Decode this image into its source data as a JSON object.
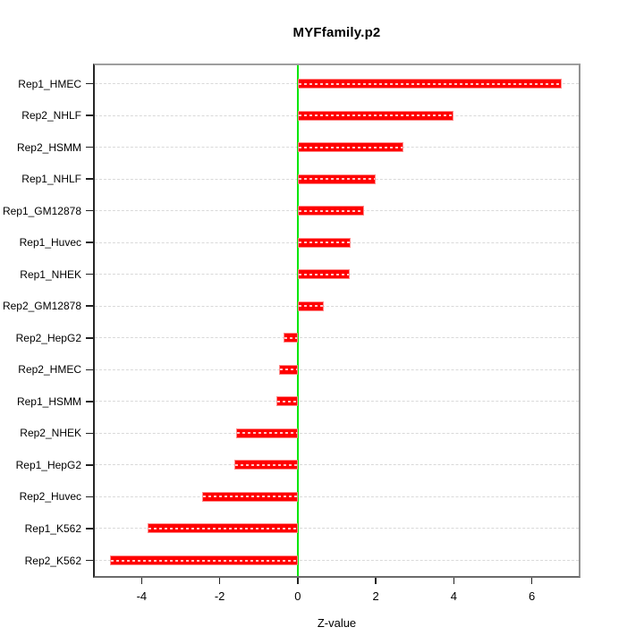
{
  "chart_data": {
    "type": "bar",
    "orientation": "horizontal",
    "title": "MYFfamily.p2",
    "xlabel": "Z-value",
    "ylabel": "",
    "categories": [
      "Rep1_HMEC",
      "Rep2_NHLF",
      "Rep2_HSMM",
      "Rep1_NHLF",
      "Rep1_GM12878",
      "Rep1_Huvec",
      "Rep1_NHEK",
      "Rep2_GM12878",
      "Rep2_HepG2",
      "Rep2_HMEC",
      "Rep1_HSMM",
      "Rep2_NHEK",
      "Rep1_HepG2",
      "Rep2_Huvec",
      "Rep1_K562",
      "Rep2_K562"
    ],
    "values": [
      6.76,
      3.99,
      2.7,
      1.99,
      1.71,
      1.36,
      1.33,
      0.67,
      -0.37,
      -0.48,
      -0.55,
      -1.58,
      -1.63,
      -2.46,
      -3.84,
      -4.8
    ],
    "xlim": [
      -5.2,
      7.2
    ],
    "xticks": [
      -4,
      -2,
      0,
      2,
      4,
      6
    ],
    "grid": "dashed horizontal line per category",
    "zero_line": true,
    "legend": "none"
  },
  "colors": {
    "bar": "#ff0000",
    "bar_border": "#ff8a8a",
    "zero_line": "#00e600",
    "grid_line": "#d9d9d9",
    "axis_text": "#000000"
  }
}
